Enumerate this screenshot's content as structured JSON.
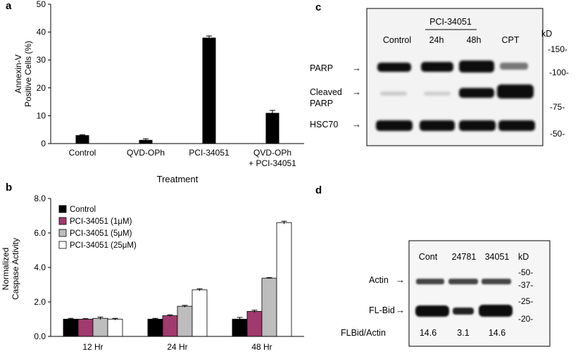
{
  "panel_a": {
    "letter": "a",
    "ylabel_line1": "Annexin-V",
    "ylabel_line2": "Positive Cells (%)",
    "xlabel": "Treatment",
    "yticks": [
      "0",
      "10",
      "20",
      "30",
      "40",
      "50"
    ],
    "categories": [
      [
        "Control"
      ],
      [
        "QVD-OPh"
      ],
      [
        "PCI-34051"
      ],
      [
        "QVD-OPh",
        "+ PCI-34051"
      ]
    ]
  },
  "panel_b": {
    "letter": "b",
    "ylabel_line1": "Normalized",
    "ylabel_line2": "Caspase Activity",
    "yticks": [
      "0.0",
      "2.0",
      "4.0",
      "6.0",
      "8.0"
    ],
    "groups": [
      "12 Hr",
      "24 Hr",
      "48 Hr"
    ],
    "legend": [
      "Control",
      "PCI-34051 (1μM)",
      "PCI-34051 (5μM)",
      "PCI-34051 (25μM)"
    ]
  },
  "panel_c": {
    "letter": "c",
    "treatment": "PCI-34051",
    "lanes": [
      "Control",
      "24h",
      "48h",
      "CPT"
    ],
    "kd_label": "kD",
    "markers": [
      "-150-",
      "-100-",
      "-75-",
      "-50-"
    ],
    "bands": [
      "PARP",
      "Cleaved",
      "PARP",
      "HSC70"
    ]
  },
  "panel_d": {
    "letter": "d",
    "lanes": [
      "Cont",
      "24781",
      "34051"
    ],
    "kd_label": "kD",
    "markers": [
      "-50-",
      "-37-",
      "-25-",
      "-20-"
    ],
    "bands": [
      "Actin",
      "FL-Bid"
    ],
    "ratio_label": "FLBid/Actin",
    "ratios": [
      "14.6",
      "3.1",
      "14.6"
    ]
  },
  "chart_data": [
    {
      "type": "bar",
      "categories": [
        "Control",
        "QVD-OPh",
        "PCI-34051",
        "QVD-OPh + PCI-34051"
      ],
      "values": [
        3.0,
        1.3,
        38.0,
        11.0
      ],
      "errors": [
        0.2,
        0.4,
        0.6,
        0.9
      ],
      "xlabel": "Treatment",
      "ylabel": "Annexin-V Positive Cells (%)",
      "ylim": [
        0,
        50
      ],
      "color": "#000000",
      "grid": false
    },
    {
      "type": "bar",
      "categories": [
        "12 Hr",
        "24 Hr",
        "48 Hr"
      ],
      "series": [
        {
          "name": "Control",
          "values": [
            1.0,
            1.0,
            1.0
          ],
          "errors": [
            0.05,
            0.05,
            0.1
          ],
          "color": "#000000"
        },
        {
          "name": "PCI-34051 (1μM)",
          "values": [
            1.0,
            1.2,
            1.45
          ],
          "errors": [
            0.03,
            0.05,
            0.07
          ],
          "color": "#a13a6e"
        },
        {
          "name": "PCI-34051 (5μM)",
          "values": [
            1.05,
            1.75,
            3.38
          ],
          "errors": [
            0.07,
            0.05,
            0.03
          ],
          "color": "#bdbdbd"
        },
        {
          "name": "PCI-34051 (25μM)",
          "values": [
            1.0,
            2.7,
            6.6
          ],
          "errors": [
            0.05,
            0.06,
            0.08
          ],
          "color": "#ffffff"
        }
      ],
      "ylabel": "Normalized Caspase Activity",
      "ylim": [
        0,
        8
      ],
      "legend_position": "top-left",
      "grid": false
    }
  ]
}
